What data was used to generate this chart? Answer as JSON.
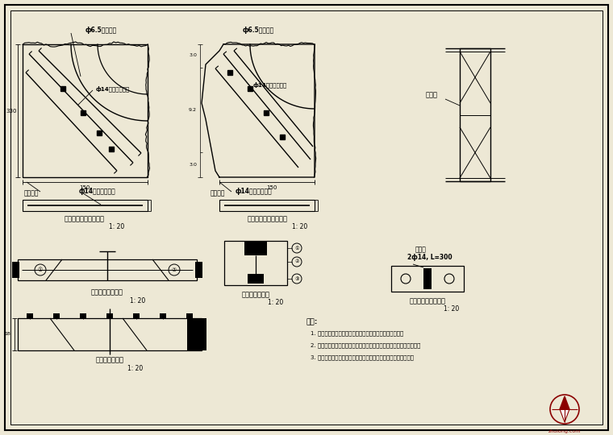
{
  "bg_color": "#ede8d5",
  "border_color": "#000000",
  "line_color": "#000000",
  "notes_header": "说明:",
  "notes": [
    "1. 本图尺寸除钢筋直径以毫米计外，其余尺寸均以厘米计。",
    "2. 直角及斜角钢筋置在最靠角的铺位上，拉杆钢筋置靠近自由端埋板。",
    "3. 面面被切的沉降处方向缝侧向时，采用钢条斜向封闭钢筋环边。"
  ]
}
